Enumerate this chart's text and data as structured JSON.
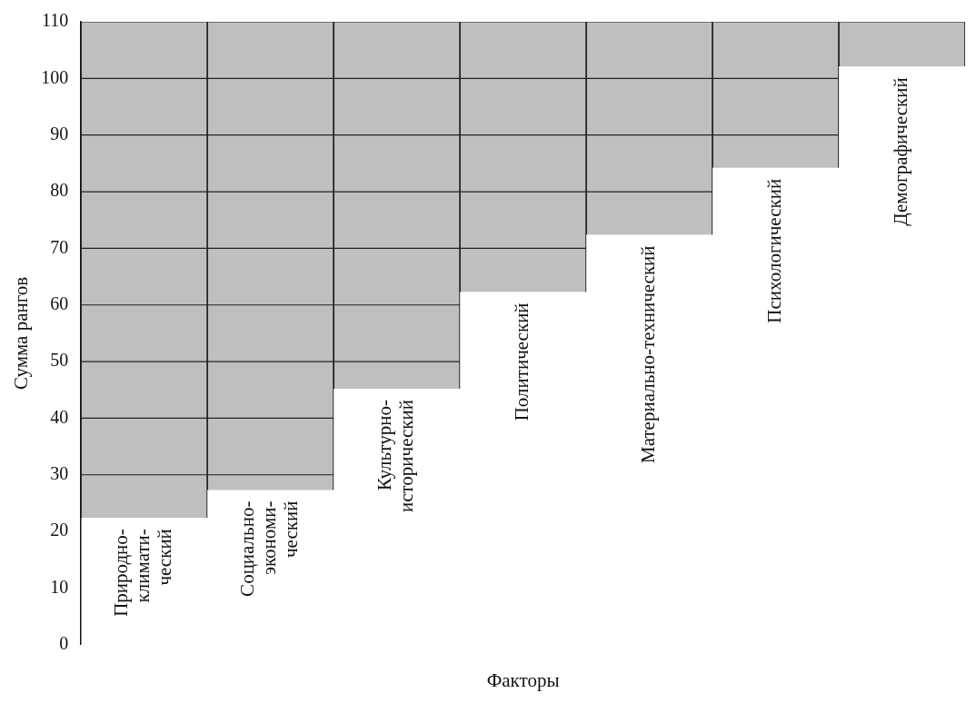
{
  "chart_data": {
    "type": "bar",
    "xlabel": "Факторы",
    "ylabel": "Сумма рангов",
    "categories": [
      "Природно-\nклимати-\nческий",
      "Социально-\nэкономи-\nческий",
      "Культурно-\nисторический",
      "Политический",
      "Материально-технический",
      "Психологический",
      "Демографический"
    ],
    "base": [
      22.4,
      27.3,
      45.2,
      62.3,
      72.4,
      84.2,
      102.1
    ],
    "values": [
      87.6,
      82.7,
      64.8,
      47.7,
      37.6,
      25.8,
      7.9
    ],
    "color": "#bfbfbf",
    "ylim": [
      0,
      110
    ],
    "yticks": [
      0,
      10,
      20,
      30,
      40,
      50,
      60,
      70,
      80,
      90,
      100,
      110
    ],
    "grid": true,
    "legend": false
  }
}
